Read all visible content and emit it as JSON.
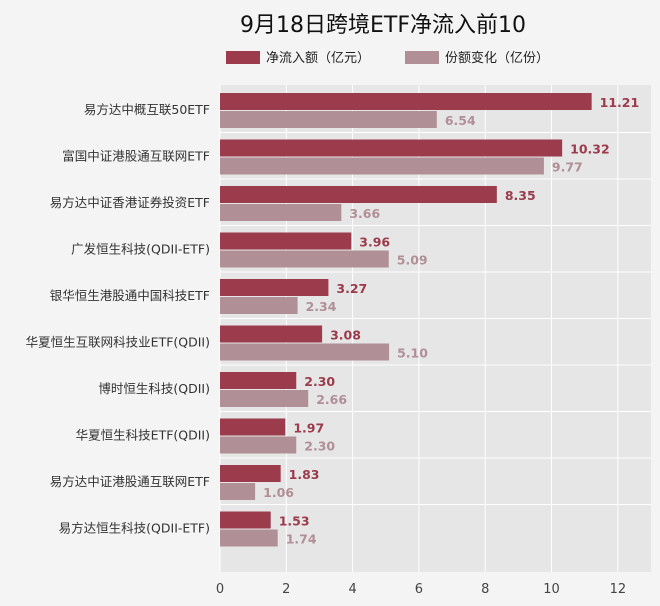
{
  "chart_data": {
    "type": "bar",
    "orientation": "horizontal",
    "title": "9月18日跨境ETF净流入前10",
    "categories": [
      "易方达中概互联50ETF",
      "富国中证港股通互联网ETF",
      "易方达中证香港证券投资ETF",
      "广发恒生科技(QDII-ETF)",
      "银华恒生港股通中国科技ETF",
      "华夏恒生互联网科技业ETF(QDII)",
      "博时恒生科技(QDII)",
      "华夏恒生科技ETF(QDII)",
      "易方达中证港股通互联网ETF",
      "易方达恒生科技(QDII-ETF)"
    ],
    "series": [
      {
        "name": "净流入额（亿元）",
        "color": "#9b3b4c",
        "values": [
          11.21,
          10.32,
          8.35,
          3.96,
          3.27,
          3.08,
          2.3,
          1.97,
          1.83,
          1.53
        ],
        "value_labels": [
          "11.21",
          "10.32",
          "8.35",
          "3.96",
          "3.27",
          "3.08",
          "2.30",
          "1.97",
          "1.83",
          "1.53"
        ]
      },
      {
        "name": "份额变化（亿份）",
        "color": "#b08f97",
        "values": [
          6.54,
          9.77,
          3.66,
          5.09,
          2.34,
          5.1,
          2.66,
          2.3,
          1.06,
          1.74
        ],
        "value_labels": [
          "6.54",
          "9.77",
          "3.66",
          "5.09",
          "2.34",
          "5.10",
          "2.66",
          "2.30",
          "1.06",
          "1.74"
        ]
      }
    ],
    "xlim": [
      0,
      13
    ],
    "xticks": [
      0,
      2,
      4,
      6,
      8,
      10,
      12
    ],
    "xlabel": "",
    "ylabel": "",
    "grid": true,
    "legend_position": "top",
    "plot_background": "#e6e6e6"
  }
}
